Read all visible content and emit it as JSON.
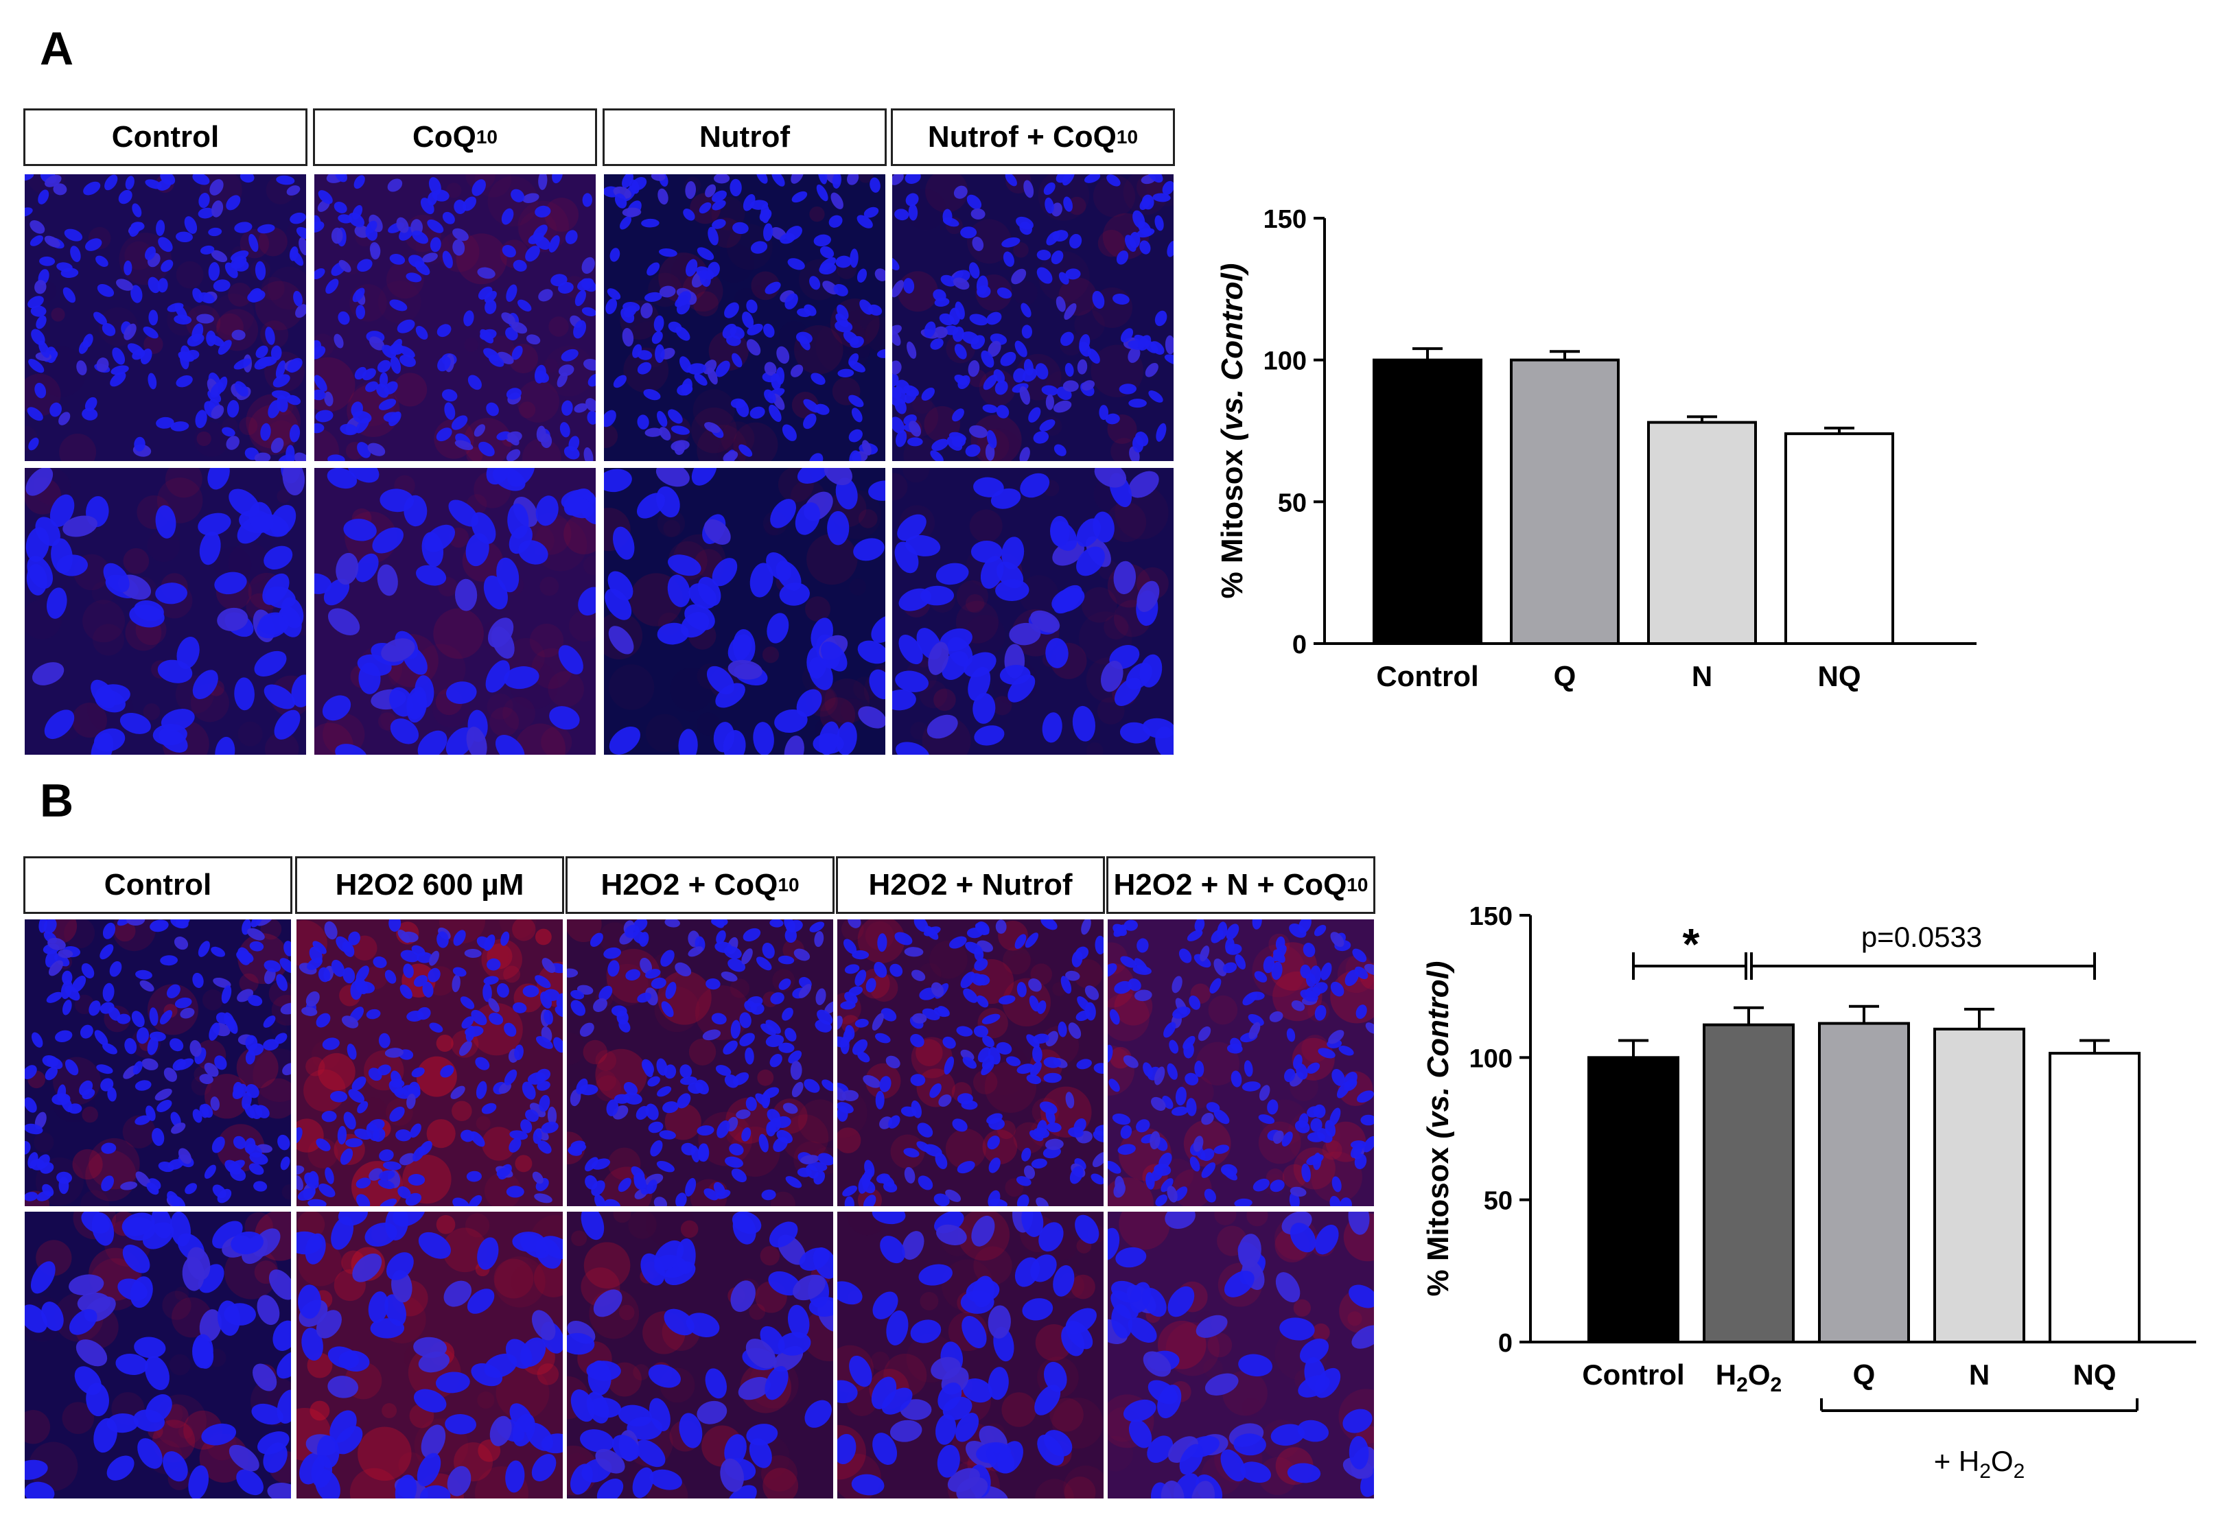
{
  "panelA": {
    "letter": "A",
    "headers": [
      {
        "main": "Control",
        "sub": ""
      },
      {
        "main": "CoQ",
        "sub": "10"
      },
      {
        "main": "Nutrof",
        "sub": ""
      },
      {
        "main": "Nutrof + CoQ",
        "sub": "10"
      }
    ],
    "image_tint": [
      "#1a0a55",
      "#2a0a55",
      "#0c0a4a",
      "#150a50"
    ],
    "chart_data": {
      "type": "bar",
      "categories": [
        "Control",
        "Q",
        "N",
        "NQ"
      ],
      "values": [
        100,
        100,
        78,
        74
      ],
      "errors": [
        4,
        3,
        2,
        2
      ],
      "colors": [
        "#000000",
        "#a5a5aa",
        "#d8d8d8",
        "#ffffff"
      ],
      "ylabel": "% Mitosox",
      "ylabel_italic": "(vs. Control)",
      "ylim": [
        0,
        150
      ],
      "yticks": [
        0,
        50,
        100,
        150
      ]
    }
  },
  "panelB": {
    "letter": "B",
    "headers": [
      {
        "main": "Control",
        "sub": ""
      },
      {
        "main": "H2O2 600 µM",
        "sub": ""
      },
      {
        "main": "H2O2 + CoQ",
        "sub": "10"
      },
      {
        "main": "H2O2 + Nutrof",
        "sub": ""
      },
      {
        "main": "H2O2 + N + CoQ",
        "sub": "10"
      }
    ],
    "image_tint": [
      "#14084e",
      "#4a0a3a",
      "#30093f",
      "#35093f",
      "#3a0c50"
    ],
    "chart_data": {
      "type": "bar",
      "categories": [
        "Control",
        "H2O2",
        "Q",
        "N",
        "NQ"
      ],
      "values": [
        100,
        111.5,
        112,
        110,
        101.5
      ],
      "errors": [
        6,
        6,
        6,
        7,
        4.5
      ],
      "colors": [
        "#000000",
        "#646464",
        "#a5a5aa",
        "#d8d8d8",
        "#ffffff"
      ],
      "ylabel": "% Mitosox",
      "ylabel_italic": "(vs. Control)",
      "ylim": [
        0,
        150
      ],
      "yticks": [
        0,
        50,
        100,
        150
      ],
      "annotations": {
        "significance": "*",
        "pvalue": "p=0.0533",
        "group_label": "+ H2O2"
      }
    }
  }
}
